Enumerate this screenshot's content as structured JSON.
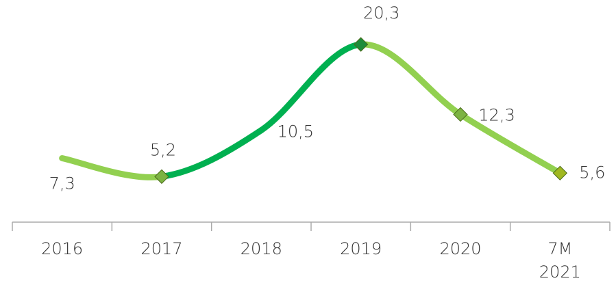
{
  "chart_data": {
    "type": "line",
    "categories": [
      "2016",
      "2017",
      "2018",
      "2019",
      "2020",
      "7M 2021"
    ],
    "values": [
      7.3,
      5.2,
      10.5,
      20.3,
      12.3,
      5.6
    ],
    "value_labels": [
      "7,3",
      "5,2",
      "10,5",
      "20,3",
      "12,3",
      "5,6"
    ],
    "segment_colors": [
      "#92d050",
      "#00b050",
      "#00b050",
      "#92d050",
      "#92d050"
    ],
    "marker_colors": [
      null,
      "#7cb342",
      null,
      "#1e8c3a",
      "#7cb342",
      "#a0b820"
    ]
  }
}
